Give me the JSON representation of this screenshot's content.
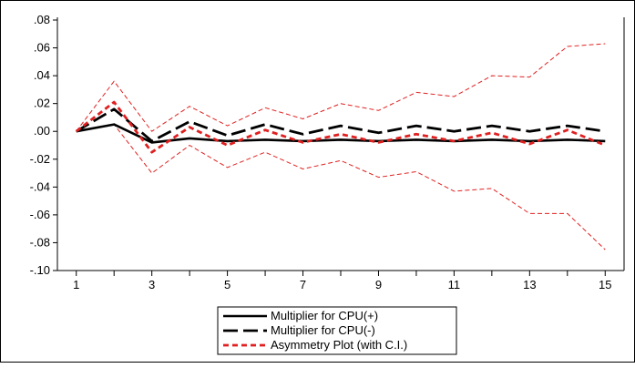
{
  "chart_data": {
    "type": "line",
    "title": "",
    "xlabel": "",
    "ylabel": "",
    "ylim": [
      -0.1,
      0.08
    ],
    "xlim": [
      1,
      15
    ],
    "x": [
      1,
      2,
      3,
      4,
      5,
      6,
      7,
      8,
      9,
      10,
      11,
      12,
      13,
      14,
      15
    ],
    "x_tick_labels": [
      "1",
      "3",
      "5",
      "7",
      "9",
      "11",
      "13",
      "15"
    ],
    "y_tick_labels": [
      ".08",
      ".06",
      ".04",
      ".02",
      ".00",
      "-.02",
      "-.04",
      "-.06",
      "-.08",
      "-.10"
    ],
    "grid": false,
    "legend_position": "bottom-center",
    "series": [
      {
        "name": "Multiplier for CPU(+)",
        "style": "solid-thick",
        "color": "#000000",
        "values": [
          0.0,
          0.005,
          -0.008,
          -0.005,
          -0.007,
          -0.006,
          -0.007,
          -0.006,
          -0.007,
          -0.006,
          -0.007,
          -0.006,
          -0.007,
          -0.006,
          -0.007
        ]
      },
      {
        "name": "Multiplier for CPU(-)",
        "style": "long-dash-thick",
        "color": "#000000",
        "values": [
          0.0,
          0.016,
          -0.007,
          0.007,
          -0.003,
          0.005,
          -0.002,
          0.004,
          -0.001,
          0.004,
          0.0,
          0.004,
          0.0,
          0.004,
          0.0
        ]
      },
      {
        "name": "Asymmetry Plot (with C.I.)",
        "style": "short-dash-thick",
        "color": "#e02020",
        "values": [
          0.0,
          0.021,
          -0.015,
          0.003,
          -0.01,
          0.001,
          -0.008,
          -0.002,
          -0.008,
          -0.002,
          -0.007,
          -0.001,
          -0.009,
          0.001,
          -0.01
        ]
      },
      {
        "name": "",
        "style": "thin-dash",
        "color": "#e02020",
        "values": [
          0.0,
          0.036,
          0.0,
          0.018,
          0.004,
          0.017,
          0.009,
          0.02,
          0.015,
          0.028,
          0.025,
          0.04,
          0.039,
          0.061,
          0.063
        ]
      },
      {
        "name": "",
        "style": "thin-dash",
        "color": "#e02020",
        "values": [
          0.0,
          0.005,
          -0.03,
          -0.01,
          -0.026,
          -0.015,
          -0.027,
          -0.021,
          -0.033,
          -0.029,
          -0.043,
          -0.041,
          -0.059,
          -0.059,
          -0.085
        ]
      }
    ],
    "legend": [
      "Multiplier for CPU(+)",
      "Multiplier for CPU(-)",
      "Asymmetry Plot (with C.I.)"
    ]
  }
}
